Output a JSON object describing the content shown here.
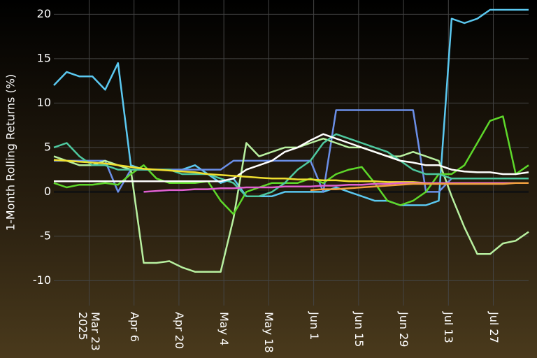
{
  "chart_data": {
    "type": "line",
    "y_label": "1-Month Rolling Returns (%)",
    "x": [
      "2025-03-12",
      "2025-03-16",
      "2025-03-20",
      "2025-03-24",
      "2025-03-28",
      "2025-04-01",
      "2025-04-05",
      "2025-04-09",
      "2025-04-13",
      "2025-04-17",
      "2025-04-21",
      "2025-04-25",
      "2025-04-29",
      "2025-05-03",
      "2025-05-07",
      "2025-05-11",
      "2025-05-15",
      "2025-05-19",
      "2025-05-23",
      "2025-05-27",
      "2025-05-31",
      "2025-06-04",
      "2025-06-08",
      "2025-06-12",
      "2025-06-16",
      "2025-06-20",
      "2025-06-24",
      "2025-06-28",
      "2025-07-02",
      "2025-07-06",
      "2025-07-10",
      "2025-07-14",
      "2025-07-18",
      "2025-07-22",
      "2025-07-26",
      "2025-07-30",
      "2025-08-03",
      "2025-08-07"
    ],
    "xlim": [
      "2025-03-12",
      "2025-08-07"
    ],
    "xticks": [
      {
        "value": "2025-03-23",
        "label": "Mar 23\n2025"
      },
      {
        "value": "2025-04-06",
        "label": "Apr 6"
      },
      {
        "value": "2025-04-20",
        "label": "Apr 20"
      },
      {
        "value": "2025-05-04",
        "label": "May 4"
      },
      {
        "value": "2025-05-18",
        "label": "May 18"
      },
      {
        "value": "2025-06-01",
        "label": "Jun 1"
      },
      {
        "value": "2025-06-15",
        "label": "Jun 15"
      },
      {
        "value": "2025-06-29",
        "label": "Jun 29"
      },
      {
        "value": "2025-07-13",
        "label": "Jul 13"
      },
      {
        "value": "2025-07-27",
        "label": "Jul 27"
      }
    ],
    "ylim": [
      -12.8,
      21.6
    ],
    "yticks": [
      -10,
      -5,
      0,
      5,
      10,
      15,
      20
    ],
    "grid": true,
    "series": [
      {
        "color": "#5bc8f0",
        "values": [
          12,
          13.5,
          13,
          13,
          11.5,
          14.5,
          3,
          2.5,
          2.5,
          2.5,
          2.5,
          3,
          2,
          1,
          1.5,
          -0.5,
          -0.5,
          -0.5,
          0,
          0,
          0,
          0,
          0.5,
          0,
          -0.5,
          -1,
          -1,
          -1.5,
          -1.5,
          -1.5,
          -1,
          19.5,
          19,
          19.5,
          20.5,
          20.5,
          20.5,
          20.5
        ]
      },
      {
        "color": "#6b8fe8",
        "values": [
          3.5,
          3.5,
          3.5,
          3.5,
          3.5,
          0,
          2.5,
          2.5,
          2.5,
          2.5,
          2.5,
          2.5,
          2.5,
          2.5,
          3.5,
          3.5,
          3.5,
          3.5,
          3.5,
          3.5,
          3.5,
          0,
          9.2,
          9.2,
          9.2,
          9.2,
          9.2,
          9.2,
          9.2,
          0,
          0,
          1.5,
          1.5,
          1.5,
          1.5,
          1.5,
          1.5,
          1.5
        ]
      },
      {
        "color": "#b8f0a0",
        "values": [
          4,
          3.5,
          3,
          3,
          3.5,
          3,
          2.5,
          -8,
          -8,
          -7.8,
          -8.5,
          -9,
          -9,
          -9,
          -3,
          5.5,
          4,
          4.5,
          5,
          5,
          5.5,
          6,
          5.5,
          5,
          5,
          4.5,
          4,
          4,
          4.5,
          4,
          3.5,
          -0.5,
          -4,
          -7,
          -7,
          -5.8,
          -5.5,
          -4.5
        ]
      },
      {
        "color": "#5ed82a",
        "values": [
          1,
          0.5,
          0.8,
          0.8,
          1,
          0.8,
          2,
          3,
          1.5,
          1,
          1,
          1,
          1.2,
          -1,
          -2.5,
          0,
          0.5,
          1,
          1,
          1,
          1.5,
          1,
          2,
          2.5,
          2.8,
          1,
          -1,
          -1.5,
          -1,
          0,
          2,
          2,
          3,
          5.5,
          8,
          8.5,
          2,
          3
        ]
      },
      {
        "color": "#4ec9a0",
        "values": [
          5,
          5.5,
          4,
          3,
          3,
          2.5,
          2.5,
          2.5,
          2.5,
          2.5,
          2,
          2,
          2,
          1.5,
          1,
          -0.5,
          -0.5,
          0,
          1,
          2.5,
          3.5,
          5.5,
          6.5,
          6,
          5.5,
          5,
          4.5,
          3.5,
          2.5,
          2,
          2,
          1.5,
          1.5,
          1.5,
          1.5,
          1.5,
          1.5,
          1.5
        ]
      },
      {
        "color": "#ffffff",
        "values": [
          1.2,
          1.2,
          1.2,
          1.2,
          1.2,
          1.2,
          1.2,
          1.2,
          1.2,
          1.2,
          1.2,
          1.2,
          1.2,
          1.2,
          1.5,
          2.5,
          3,
          3.5,
          4.5,
          5,
          5.8,
          6.5,
          6,
          5.5,
          5,
          4.5,
          4,
          3.5,
          3.3,
          3,
          3,
          2.5,
          2.3,
          2.2,
          2.2,
          2,
          2,
          2.2
        ]
      },
      {
        "color": "#f0e030",
        "values": [
          3.6,
          3.5,
          3.4,
          3.3,
          3.2,
          3,
          2.8,
          2.6,
          2.5,
          2.4,
          2.3,
          2.2,
          2,
          1.9,
          1.8,
          1.7,
          1.6,
          1.5,
          1.5,
          1.4,
          1.4,
          1.3,
          1.3,
          1.2,
          1.2,
          1.2,
          1.1,
          1.1,
          1.1,
          1,
          1,
          1,
          1,
          1,
          1,
          1,
          1,
          1
        ]
      },
      {
        "color": "#e060d0",
        "values": [
          null,
          null,
          null,
          null,
          null,
          null,
          null,
          0,
          0.1,
          0.2,
          0.2,
          0.3,
          0.3,
          0.4,
          0.4,
          0.5,
          0.5,
          0.5,
          0.6,
          0.6,
          0.6,
          0.7,
          0.7,
          0.8,
          0.8,
          0.9,
          0.9,
          1,
          1,
          1,
          1,
          1,
          1,
          1,
          1,
          1,
          1,
          1
        ]
      },
      {
        "color": "#f0a040",
        "values": [
          null,
          null,
          null,
          null,
          null,
          null,
          null,
          null,
          null,
          null,
          null,
          null,
          null,
          null,
          null,
          null,
          null,
          null,
          null,
          null,
          0.2,
          0.3,
          0.3,
          0.4,
          0.5,
          0.6,
          0.7,
          0.8,
          0.9,
          0.9,
          0.9,
          0.9,
          0.9,
          0.9,
          0.9,
          0.9,
          1,
          1
        ]
      }
    ]
  }
}
